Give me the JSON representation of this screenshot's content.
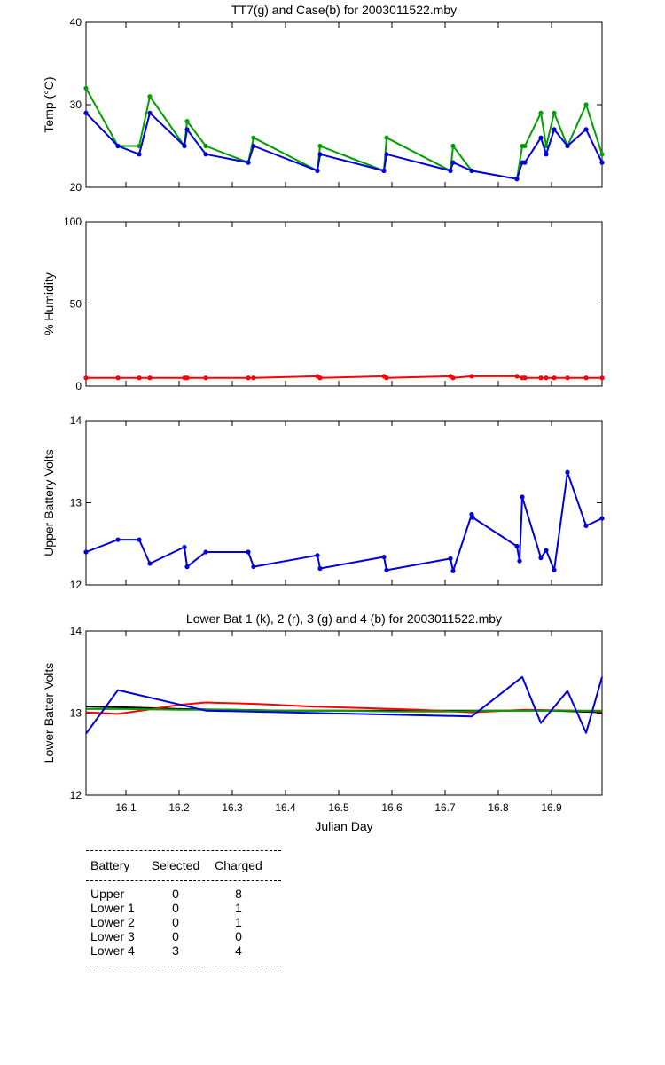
{
  "colors": {
    "green": "#00a000",
    "blue": "#0000e0",
    "red": "#ff0000",
    "black": "#000000"
  },
  "chart_data": [
    {
      "type": "line",
      "title": "TT7(g) and Case(b) for 2003011522.mby",
      "xlabel": "",
      "ylabel": "Temp  (°C)",
      "xlim": [
        16.025,
        16.995
      ],
      "ylim": [
        20,
        40
      ],
      "yticks": [
        "20",
        "30",
        "40"
      ],
      "xticks": [],
      "markers": true,
      "series": [
        {
          "color": "green",
          "x": [
            16.025,
            16.085,
            16.125,
            16.145,
            16.21,
            16.215,
            16.25,
            16.33,
            16.34,
            16.46,
            16.465,
            16.585,
            16.59,
            16.71,
            16.715,
            16.75,
            16.835,
            16.845,
            16.85,
            16.88,
            16.89,
            16.905,
            16.93,
            16.965,
            16.995
          ],
          "y": [
            32,
            25,
            25,
            31,
            25,
            28,
            25,
            23,
            26,
            22,
            25,
            22,
            26,
            22,
            25,
            22,
            21,
            25,
            25,
            29,
            25,
            29,
            25,
            30,
            24
          ]
        },
        {
          "color": "blue",
          "x": [
            16.025,
            16.085,
            16.125,
            16.145,
            16.21,
            16.215,
            16.25,
            16.33,
            16.34,
            16.46,
            16.465,
            16.585,
            16.59,
            16.71,
            16.715,
            16.75,
            16.835,
            16.845,
            16.85,
            16.88,
            16.89,
            16.905,
            16.93,
            16.965,
            16.995
          ],
          "y": [
            29,
            25,
            24,
            29,
            25,
            27,
            24,
            23,
            25,
            22,
            24,
            22,
            24,
            22,
            23,
            22,
            21,
            23,
            23,
            26,
            24,
            27,
            25,
            27,
            23
          ]
        }
      ]
    },
    {
      "type": "line",
      "title": "",
      "xlabel": "",
      "ylabel": "% Humidity",
      "xlim": [
        16.025,
        16.995
      ],
      "ylim": [
        0,
        100
      ],
      "yticks": [
        "0",
        "50",
        "100"
      ],
      "xticks": [],
      "markers": true,
      "series": [
        {
          "color": "red",
          "x": [
            16.025,
            16.085,
            16.125,
            16.145,
            16.21,
            16.215,
            16.25,
            16.33,
            16.34,
            16.46,
            16.465,
            16.585,
            16.59,
            16.71,
            16.715,
            16.75,
            16.835,
            16.845,
            16.85,
            16.88,
            16.89,
            16.905,
            16.93,
            16.965,
            16.995
          ],
          "y": [
            5,
            5,
            5,
            5,
            5,
            5,
            5,
            5,
            5,
            6,
            5,
            6,
            5,
            6,
            5,
            6,
            6,
            5,
            5,
            5,
            5,
            5,
            5,
            5,
            5
          ]
        }
      ]
    },
    {
      "type": "line",
      "title": "",
      "xlabel": "",
      "ylabel": "Upper Battery Volts",
      "xlim": [
        16.025,
        16.995
      ],
      "ylim": [
        12,
        14
      ],
      "yticks": [
        "12",
        "13",
        "14"
      ],
      "xticks": [],
      "markers": true,
      "series": [
        {
          "color": "blue",
          "x": [
            16.025,
            16.085,
            16.125,
            16.145,
            16.21,
            16.215,
            16.25,
            16.33,
            16.34,
            16.46,
            16.465,
            16.585,
            16.59,
            16.71,
            16.715,
            16.75,
            16.752,
            16.835,
            16.84,
            16.845,
            16.88,
            16.89,
            16.905,
            16.93,
            16.965,
            16.995
          ],
          "y": [
            12.4,
            12.55,
            12.55,
            12.26,
            12.46,
            12.22,
            12.4,
            12.4,
            12.22,
            12.36,
            12.2,
            12.34,
            12.18,
            12.32,
            12.17,
            12.86,
            12.82,
            12.47,
            12.29,
            13.07,
            12.33,
            12.42,
            12.18,
            13.37,
            12.72,
            12.81
          ]
        }
      ]
    },
    {
      "type": "line",
      "title": "Lower Bat 1 (k), 2 (r), 3 (g) and 4 (b) for 2003011522.mby",
      "xlabel": "Julian Day",
      "ylabel": "Lower Batter Volts",
      "xlim": [
        16.025,
        16.995
      ],
      "ylim": [
        12,
        14
      ],
      "yticks": [
        "12",
        "13",
        "14"
      ],
      "xticks": [
        "16.1",
        "16.2",
        "16.3",
        "16.4",
        "16.5",
        "16.6",
        "16.7",
        "16.8",
        "16.9"
      ],
      "xtick_values": [
        16.1,
        16.2,
        16.3,
        16.4,
        16.5,
        16.6,
        16.7,
        16.8,
        16.9
      ],
      "markers": false,
      "series": [
        {
          "color": "black",
          "x": [
            16.025,
            16.1,
            16.2,
            16.3,
            16.4,
            16.5,
            16.6,
            16.7,
            16.8,
            16.9,
            16.995
          ],
          "y": [
            13.08,
            13.07,
            13.05,
            13.04,
            13.03,
            13.03,
            13.03,
            13.03,
            13.03,
            13.03,
            13.01
          ]
        },
        {
          "color": "red",
          "x": [
            16.025,
            16.085,
            16.15,
            16.2,
            16.25,
            16.35,
            16.45,
            16.55,
            16.65,
            16.75,
            16.85,
            16.95,
            16.995
          ],
          "y": [
            13.01,
            12.99,
            13.05,
            13.1,
            13.13,
            13.11,
            13.08,
            13.06,
            13.04,
            13.01,
            13.04,
            13.03,
            13.02
          ]
        },
        {
          "color": "green",
          "x": [
            16.025,
            16.1,
            16.2,
            16.3,
            16.4,
            16.5,
            16.6,
            16.7,
            16.8,
            16.9,
            16.995
          ],
          "y": [
            13.05,
            13.05,
            13.04,
            13.04,
            13.03,
            13.03,
            13.02,
            13.02,
            13.03,
            13.03,
            13.03
          ]
        },
        {
          "color": "blue",
          "x": [
            16.025,
            16.085,
            16.25,
            16.75,
            16.845,
            16.88,
            16.93,
            16.965,
            16.995
          ],
          "y": [
            12.75,
            13.28,
            13.03,
            12.96,
            13.44,
            12.88,
            13.27,
            12.76,
            13.44
          ]
        }
      ]
    }
  ],
  "battery_table": {
    "headers": [
      "Battery",
      "Selected",
      "Charged"
    ],
    "rows": [
      {
        "battery": "Upper",
        "selected": "0",
        "charged": "8"
      },
      {
        "battery": "Lower 1",
        "selected": "0",
        "charged": "1"
      },
      {
        "battery": "Lower 2",
        "selected": "0",
        "charged": "1"
      },
      {
        "battery": "Lower 3",
        "selected": "0",
        "charged": "0"
      },
      {
        "battery": "Lower 4",
        "selected": "3",
        "charged": "4"
      }
    ]
  }
}
